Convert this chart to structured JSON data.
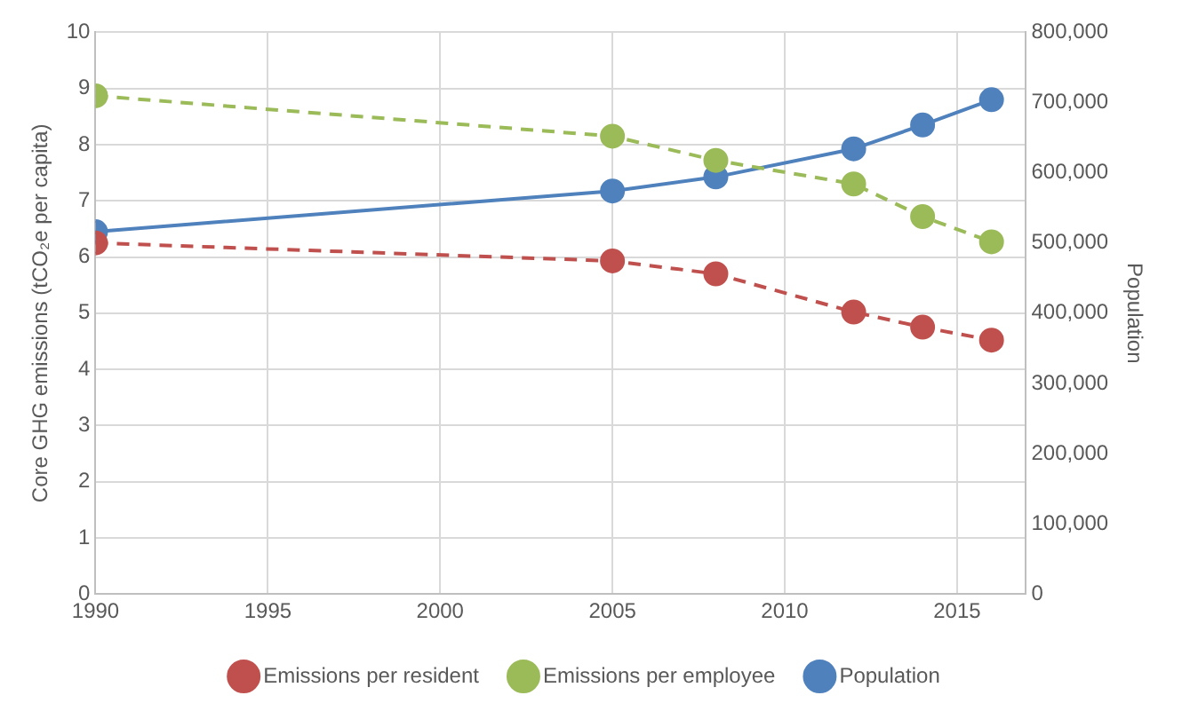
{
  "chart_data": {
    "type": "line",
    "ylabel": "Core GHG emissions (tCO₂e per capita)",
    "y2label": "Population",
    "x": [
      1990,
      2005,
      2008,
      2012,
      2014,
      2016
    ],
    "series": [
      {
        "name": "Emissions per resident",
        "color": "#c0504d",
        "line_style": "dashed",
        "values": [
          6.25,
          5.93,
          5.7,
          5.02,
          4.75,
          4.52
        ]
      },
      {
        "name": "Emissions per employee",
        "color": "#9bbb59",
        "line_style": "dashed",
        "values": [
          8.87,
          8.15,
          7.72,
          7.3,
          6.72,
          6.27
        ]
      },
      {
        "name": "Population",
        "color": "#4f81bd",
        "line_style": "solid",
        "axis": "y2",
        "values": [
          516000,
          574000,
          594000,
          634000,
          668000,
          704000
        ]
      }
    ],
    "xlim": [
      1990,
      2017
    ],
    "xticks": [
      1990,
      1995,
      2000,
      2005,
      2010,
      2015
    ],
    "ylim": [
      0,
      10
    ],
    "yticks": [
      0,
      1,
      2,
      3,
      4,
      5,
      6,
      7,
      8,
      9,
      10
    ],
    "y2lim": [
      0,
      800000
    ],
    "y2ticks": [
      {
        "value": 0,
        "label": "0"
      },
      {
        "value": 100000,
        "label": "100,000"
      },
      {
        "value": 200000,
        "label": "200,000"
      },
      {
        "value": 300000,
        "label": "300,000"
      },
      {
        "value": 400000,
        "label": "400,000"
      },
      {
        "value": 500000,
        "label": "500,000"
      },
      {
        "value": 600000,
        "label": "600,000"
      },
      {
        "value": 700000,
        "label": "700,000"
      },
      {
        "value": 800000,
        "label": "800,000"
      }
    ],
    "grid": true,
    "legend": "bottom",
    "marker": "circle"
  }
}
